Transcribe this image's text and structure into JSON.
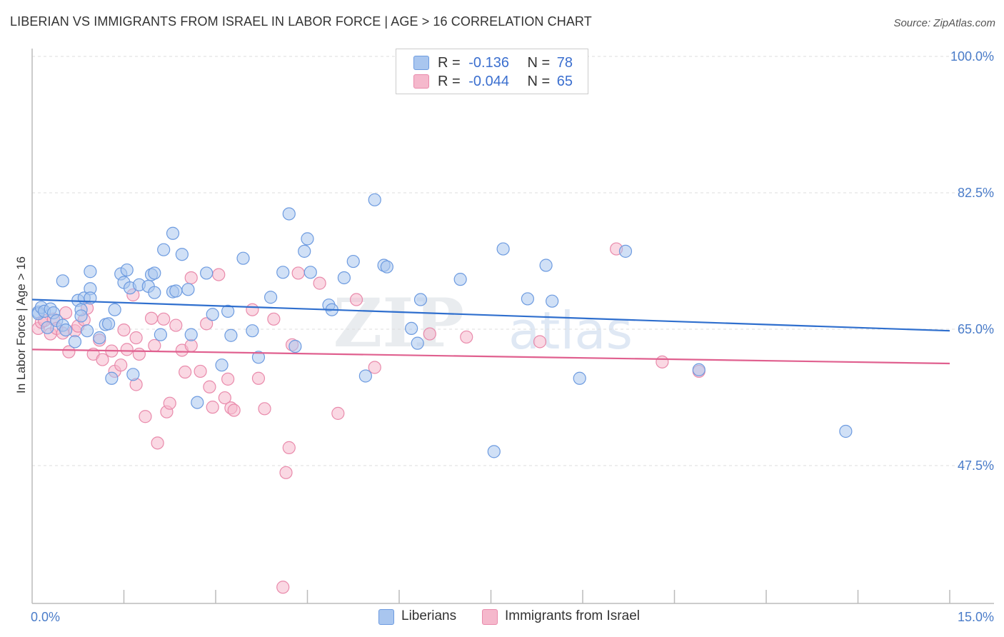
{
  "header": {
    "title": "LIBERIAN VS IMMIGRANTS FROM ISRAEL IN LABOR FORCE | AGE > 16 CORRELATION CHART",
    "source": "Source: ZipAtlas.com"
  },
  "watermark": {
    "text_zip": "ZIP",
    "text_atlas": "atlas"
  },
  "colors": {
    "blue_fill": "#a9c6ef",
    "blue_stroke": "#6d9be0",
    "blue_line": "#2f6fce",
    "pink_fill": "#f5b8cc",
    "pink_stroke": "#e98aab",
    "pink_line": "#e0608f",
    "tick_label": "#4a7cc9",
    "grid": "#dddddd"
  },
  "legend": {
    "rows": [
      {
        "r_label": "R =",
        "r_value": "-0.136",
        "n_label": "N =",
        "n_value": "78",
        "color": "#a9c6ef"
      },
      {
        "r_label": "R =",
        "r_value": "-0.044",
        "n_label": "N =",
        "n_value": "65",
        "color": "#f5b8cc"
      }
    ]
  },
  "chart_data": {
    "type": "scatter",
    "title": "LIBERIAN VS IMMIGRANTS FROM ISRAEL IN LABOR FORCE | AGE > 16 CORRELATION CHART",
    "xlabel": "",
    "ylabel": "In Labor Force | Age > 16",
    "xlim": [
      0,
      15
    ],
    "ylim": [
      32.0,
      104.0
    ],
    "x_tick_labels": [
      "0.0%",
      "15.0%"
    ],
    "y_ticks": [
      47.5,
      65.0,
      82.5,
      100.0
    ],
    "y_tick_labels": [
      "47.5%",
      "65.0%",
      "82.5%",
      "100.0%"
    ],
    "grid": "horizontal dashed",
    "legend_position": "top-center",
    "series": [
      {
        "name": "Liberians",
        "color": "#a9c6ef",
        "trend": {
          "x": [
            0,
            15
          ],
          "y": [
            68.8,
            64.8
          ]
        },
        "points": [
          [
            0.1,
            67.2
          ],
          [
            0.1,
            67.0
          ],
          [
            0.15,
            67.8
          ],
          [
            0.2,
            67.3
          ],
          [
            0.25,
            65.2
          ],
          [
            0.3,
            67.6
          ],
          [
            0.35,
            67.1
          ],
          [
            0.4,
            66.1
          ],
          [
            0.5,
            65.5
          ],
          [
            0.55,
            64.9
          ],
          [
            0.5,
            71.2
          ],
          [
            0.7,
            63.4
          ],
          [
            0.75,
            68.7
          ],
          [
            0.8,
            67.5
          ],
          [
            0.8,
            66.7
          ],
          [
            0.85,
            69.0
          ],
          [
            0.9,
            64.8
          ],
          [
            0.95,
            70.2
          ],
          [
            0.95,
            69.0
          ],
          [
            0.95,
            72.4
          ],
          [
            1.1,
            63.9
          ],
          [
            1.2,
            65.6
          ],
          [
            1.25,
            65.7
          ],
          [
            1.3,
            58.7
          ],
          [
            1.35,
            67.5
          ],
          [
            1.45,
            72.1
          ],
          [
            1.5,
            71.0
          ],
          [
            1.55,
            72.6
          ],
          [
            1.6,
            70.3
          ],
          [
            1.65,
            59.2
          ],
          [
            1.75,
            70.7
          ],
          [
            1.9,
            70.5
          ],
          [
            1.95,
            72.0
          ],
          [
            2.0,
            72.2
          ],
          [
            2.0,
            69.7
          ],
          [
            2.1,
            64.3
          ],
          [
            2.15,
            75.2
          ],
          [
            2.3,
            69.8
          ],
          [
            2.35,
            69.9
          ],
          [
            2.3,
            77.3
          ],
          [
            2.45,
            74.6
          ],
          [
            2.55,
            70.1
          ],
          [
            2.6,
            64.3
          ],
          [
            2.7,
            55.6
          ],
          [
            2.85,
            72.2
          ],
          [
            2.95,
            66.9
          ],
          [
            3.1,
            60.4
          ],
          [
            3.2,
            67.3
          ],
          [
            3.25,
            64.2
          ],
          [
            3.45,
            74.1
          ],
          [
            3.6,
            64.8
          ],
          [
            3.7,
            61.4
          ],
          [
            3.9,
            69.1
          ],
          [
            4.1,
            72.3
          ],
          [
            4.2,
            79.8
          ],
          [
            4.3,
            62.8
          ],
          [
            4.45,
            75.0
          ],
          [
            4.5,
            76.6
          ],
          [
            4.55,
            72.3
          ],
          [
            4.85,
            68.1
          ],
          [
            4.9,
            67.5
          ],
          [
            5.1,
            71.6
          ],
          [
            5.25,
            73.7
          ],
          [
            5.45,
            59.0
          ],
          [
            5.6,
            81.6
          ],
          [
            5.75,
            73.2
          ],
          [
            5.8,
            73.0
          ],
          [
            6.2,
            65.1
          ],
          [
            6.3,
            63.2
          ],
          [
            6.35,
            68.8
          ],
          [
            7.0,
            71.4
          ],
          [
            7.7,
            75.3
          ],
          [
            7.55,
            49.3
          ],
          [
            8.1,
            68.9
          ],
          [
            8.4,
            73.2
          ],
          [
            8.5,
            68.6
          ],
          [
            8.95,
            58.7
          ],
          [
            9.7,
            75.0
          ],
          [
            10.9,
            59.8
          ],
          [
            13.3,
            51.9
          ]
        ]
      },
      {
        "name": "Immigrants from Israel",
        "color": "#f5b8cc",
        "trend": {
          "x": [
            0,
            15
          ],
          "y": [
            62.4,
            60.6
          ]
        },
        "points": [
          [
            0.1,
            65.1
          ],
          [
            0.15,
            65.9
          ],
          [
            0.2,
            66.1
          ],
          [
            0.3,
            64.4
          ],
          [
            0.35,
            66.3
          ],
          [
            0.4,
            65.1
          ],
          [
            0.5,
            64.5
          ],
          [
            0.55,
            67.1
          ],
          [
            0.6,
            62.1
          ],
          [
            0.7,
            64.8
          ],
          [
            0.75,
            65.4
          ],
          [
            0.85,
            66.2
          ],
          [
            0.9,
            67.7
          ],
          [
            1.0,
            61.8
          ],
          [
            1.1,
            63.6
          ],
          [
            1.15,
            61.1
          ],
          [
            1.3,
            62.2
          ],
          [
            1.35,
            59.6
          ],
          [
            1.45,
            60.4
          ],
          [
            1.5,
            64.9
          ],
          [
            1.55,
            62.4
          ],
          [
            1.65,
            69.4
          ],
          [
            1.7,
            63.9
          ],
          [
            1.7,
            57.9
          ],
          [
            1.75,
            61.8
          ],
          [
            1.85,
            53.8
          ],
          [
            1.95,
            66.4
          ],
          [
            2.0,
            62.9
          ],
          [
            2.05,
            50.4
          ],
          [
            2.15,
            66.3
          ],
          [
            2.2,
            54.4
          ],
          [
            2.25,
            55.5
          ],
          [
            2.35,
            65.5
          ],
          [
            2.45,
            62.3
          ],
          [
            2.5,
            59.5
          ],
          [
            2.6,
            62.9
          ],
          [
            2.6,
            71.6
          ],
          [
            2.75,
            59.6
          ],
          [
            2.85,
            65.7
          ],
          [
            2.9,
            57.6
          ],
          [
            2.95,
            55.0
          ],
          [
            3.05,
            72.0
          ],
          [
            3.15,
            56.2
          ],
          [
            3.2,
            58.6
          ],
          [
            3.25,
            54.9
          ],
          [
            3.3,
            54.6
          ],
          [
            3.6,
            67.5
          ],
          [
            3.7,
            58.7
          ],
          [
            3.8,
            54.8
          ],
          [
            3.95,
            66.3
          ],
          [
            4.1,
            31.9
          ],
          [
            4.15,
            46.6
          ],
          [
            4.2,
            49.8
          ],
          [
            4.25,
            63.0
          ],
          [
            4.35,
            72.2
          ],
          [
            4.7,
            70.9
          ],
          [
            5.0,
            54.2
          ],
          [
            5.3,
            68.8
          ],
          [
            5.6,
            60.1
          ],
          [
            6.5,
            64.4
          ],
          [
            7.1,
            64.0
          ],
          [
            8.3,
            63.4
          ],
          [
            9.55,
            75.3
          ],
          [
            10.3,
            60.8
          ],
          [
            10.9,
            59.6
          ]
        ]
      }
    ]
  },
  "bottom_legend": [
    {
      "label": "Liberians",
      "color": "#a9c6ef"
    },
    {
      "label": "Immigrants from Israel",
      "color": "#f5b8cc"
    }
  ]
}
